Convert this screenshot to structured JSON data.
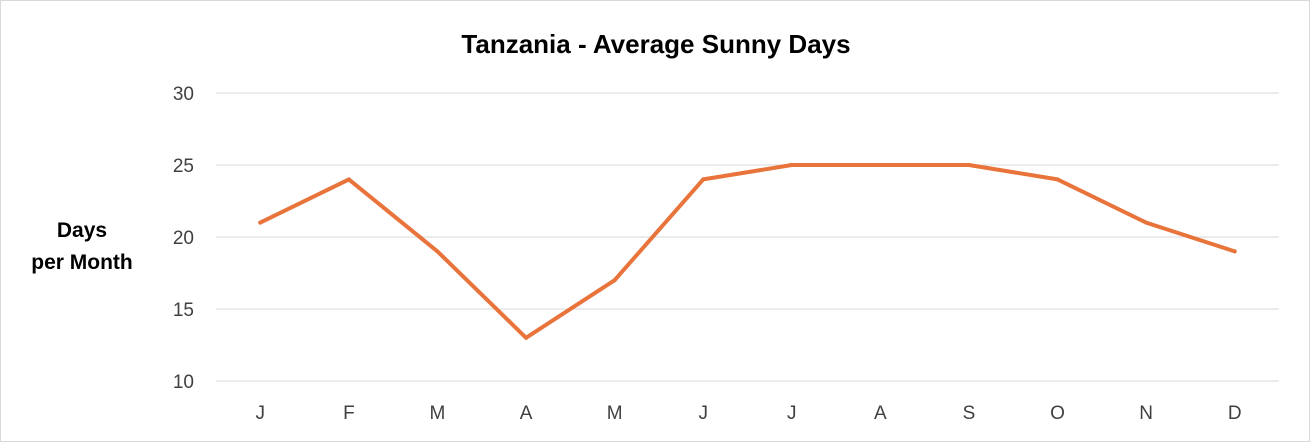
{
  "chart_data": {
    "type": "line",
    "title": "Tanzania - Average Sunny Days",
    "ylabel_lines": [
      "Days",
      "per Month"
    ],
    "xlabel": "",
    "categories": [
      "J",
      "F",
      "M",
      "A",
      "M",
      "J",
      "J",
      "A",
      "S",
      "O",
      "N",
      "D"
    ],
    "series": [
      {
        "values": [
          21,
          24,
          19,
          13,
          17,
          24,
          25,
          25,
          25,
          24,
          21,
          19
        ],
        "color": "#e8743b"
      }
    ],
    "ylim": [
      10,
      30
    ],
    "yticks": [
      10,
      15,
      20,
      25,
      30
    ],
    "grid": true,
    "legend": "none"
  }
}
